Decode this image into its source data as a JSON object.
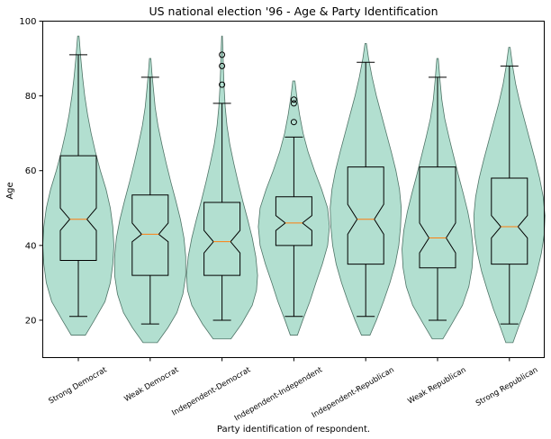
{
  "chart_data": {
    "type": "violin",
    "title": "US national election '96 - Age & Party Identification",
    "xlabel": "Party identification of respondent.",
    "ylabel": "Age",
    "ylim": [
      10,
      100
    ],
    "yticks": [
      20,
      40,
      60,
      80,
      100
    ],
    "grid": false,
    "colors": {
      "violin_fill": "#b2dfd0",
      "violin_edge": "#4f7467",
      "median": "#ff7f0e",
      "box": "#000000"
    },
    "categories": [
      "Strong Democrat",
      "Weak Democrat",
      "Independent-Democrat",
      "Independent-Independent",
      "Independent-Republican",
      "Weak Republican",
      "Strong Republican"
    ],
    "distributions": [
      {
        "min": 16,
        "max": 96,
        "density": [
          [
            16,
            0.2
          ],
          [
            20,
            0.45
          ],
          [
            25,
            0.75
          ],
          [
            30,
            0.9
          ],
          [
            35,
            0.97
          ],
          [
            40,
            1.0
          ],
          [
            45,
            0.97
          ],
          [
            50,
            0.9
          ],
          [
            55,
            0.78
          ],
          [
            60,
            0.62
          ],
          [
            65,
            0.48
          ],
          [
            70,
            0.36
          ],
          [
            75,
            0.26
          ],
          [
            80,
            0.18
          ],
          [
            85,
            0.12
          ],
          [
            90,
            0.07
          ],
          [
            96,
            0.02
          ]
        ]
      },
      {
        "min": 14,
        "max": 90,
        "density": [
          [
            14,
            0.2
          ],
          [
            18,
            0.5
          ],
          [
            22,
            0.75
          ],
          [
            27,
            0.92
          ],
          [
            32,
            1.0
          ],
          [
            37,
            1.0
          ],
          [
            42,
            0.95
          ],
          [
            47,
            0.85
          ],
          [
            52,
            0.72
          ],
          [
            57,
            0.58
          ],
          [
            62,
            0.45
          ],
          [
            67,
            0.33
          ],
          [
            72,
            0.22
          ],
          [
            77,
            0.14
          ],
          [
            82,
            0.09
          ],
          [
            86,
            0.05
          ],
          [
            90,
            0.02
          ]
        ]
      },
      {
        "min": 15,
        "max": 96,
        "density": [
          [
            15,
            0.25
          ],
          [
            19,
            0.55
          ],
          [
            24,
            0.85
          ],
          [
            28,
            0.97
          ],
          [
            32,
            1.0
          ],
          [
            37,
            0.95
          ],
          [
            42,
            0.85
          ],
          [
            47,
            0.72
          ],
          [
            52,
            0.58
          ],
          [
            57,
            0.45
          ],
          [
            62,
            0.33
          ],
          [
            67,
            0.22
          ],
          [
            72,
            0.14
          ],
          [
            77,
            0.09
          ],
          [
            82,
            0.06
          ],
          [
            87,
            0.04
          ],
          [
            91,
            0.03
          ],
          [
            96,
            0.01
          ]
        ]
      },
      {
        "min": 16,
        "max": 84,
        "density": [
          [
            16,
            0.1
          ],
          [
            20,
            0.25
          ],
          [
            25,
            0.45
          ],
          [
            30,
            0.62
          ],
          [
            35,
            0.8
          ],
          [
            40,
            0.95
          ],
          [
            45,
            1.0
          ],
          [
            50,
            0.95
          ],
          [
            55,
            0.78
          ],
          [
            60,
            0.58
          ],
          [
            65,
            0.4
          ],
          [
            70,
            0.26
          ],
          [
            75,
            0.16
          ],
          [
            80,
            0.08
          ],
          [
            84,
            0.03
          ]
        ]
      },
      {
        "min": 16,
        "max": 94,
        "density": [
          [
            16,
            0.12
          ],
          [
            20,
            0.3
          ],
          [
            25,
            0.5
          ],
          [
            30,
            0.68
          ],
          [
            35,
            0.83
          ],
          [
            40,
            0.93
          ],
          [
            45,
            0.98
          ],
          [
            50,
            1.0
          ],
          [
            55,
            0.95
          ],
          [
            60,
            0.85
          ],
          [
            65,
            0.72
          ],
          [
            70,
            0.58
          ],
          [
            75,
            0.44
          ],
          [
            80,
            0.3
          ],
          [
            85,
            0.18
          ],
          [
            90,
            0.08
          ],
          [
            94,
            0.02
          ]
        ]
      },
      {
        "min": 15,
        "max": 90,
        "density": [
          [
            15,
            0.15
          ],
          [
            19,
            0.4
          ],
          [
            24,
            0.7
          ],
          [
            29,
            0.88
          ],
          [
            34,
            0.97
          ],
          [
            39,
            1.0
          ],
          [
            44,
            0.95
          ],
          [
            49,
            0.85
          ],
          [
            54,
            0.72
          ],
          [
            59,
            0.58
          ],
          [
            64,
            0.45
          ],
          [
            69,
            0.32
          ],
          [
            74,
            0.2
          ],
          [
            79,
            0.12
          ],
          [
            84,
            0.07
          ],
          [
            90,
            0.02
          ]
        ]
      },
      {
        "min": 14,
        "max": 93,
        "density": [
          [
            14,
            0.1
          ],
          [
            18,
            0.25
          ],
          [
            23,
            0.45
          ],
          [
            28,
            0.62
          ],
          [
            33,
            0.78
          ],
          [
            38,
            0.9
          ],
          [
            43,
            0.98
          ],
          [
            48,
            1.0
          ],
          [
            53,
            0.95
          ],
          [
            58,
            0.85
          ],
          [
            63,
            0.72
          ],
          [
            68,
            0.58
          ],
          [
            73,
            0.44
          ],
          [
            78,
            0.3
          ],
          [
            83,
            0.18
          ],
          [
            88,
            0.09
          ],
          [
            93,
            0.02
          ]
        ]
      }
    ],
    "boxplots": [
      {
        "whisker_low": 21,
        "q1": 36,
        "notch_low": 44,
        "median": 47,
        "notch_high": 50,
        "q3": 64,
        "whisker_high": 91,
        "fliers": []
      },
      {
        "whisker_low": 19,
        "q1": 32,
        "notch_low": 41,
        "median": 43,
        "notch_high": 46,
        "q3": 53.5,
        "whisker_high": 85,
        "fliers": []
      },
      {
        "whisker_low": 20,
        "q1": 32,
        "notch_low": 38,
        "median": 41,
        "notch_high": 44,
        "q3": 51.5,
        "whisker_high": 78,
        "fliers": [
          83,
          88,
          91
        ]
      },
      {
        "whisker_low": 21,
        "q1": 40,
        "notch_low": 44,
        "median": 46,
        "notch_high": 48,
        "q3": 53,
        "whisker_high": 69,
        "fliers": [
          73,
          78,
          79
        ]
      },
      {
        "whisker_low": 21,
        "q1": 35,
        "notch_low": 43,
        "median": 47,
        "notch_high": 51,
        "q3": 61,
        "whisker_high": 89,
        "fliers": []
      },
      {
        "whisker_low": 20,
        "q1": 34,
        "notch_low": 38,
        "median": 42,
        "notch_high": 46,
        "q3": 61,
        "whisker_high": 85,
        "fliers": []
      },
      {
        "whisker_low": 19,
        "q1": 35,
        "notch_low": 42,
        "median": 45,
        "notch_high": 48,
        "q3": 58,
        "whisker_high": 88,
        "fliers": []
      }
    ]
  }
}
